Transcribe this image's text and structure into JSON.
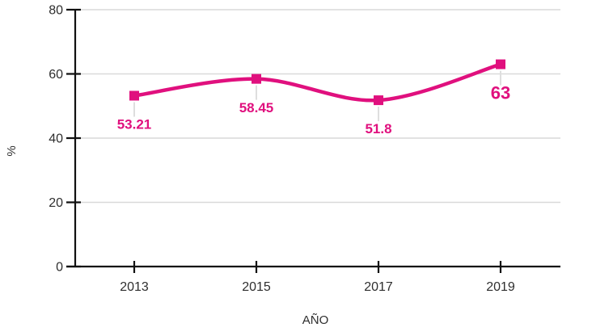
{
  "chart_data": {
    "type": "line",
    "categories": [
      "2013",
      "2015",
      "2017",
      "2019"
    ],
    "values": [
      53.21,
      58.45,
      51.8,
      63
    ],
    "point_labels": [
      "53.21",
      "58.45",
      "51.8",
      "63"
    ],
    "emphasized_point_index": 3,
    "title": "",
    "xlabel": "AÑO",
    "ylabel": "%",
    "ylim": [
      0,
      80
    ],
    "yticks": [
      0,
      20,
      40,
      60,
      80
    ],
    "ytick_labels": [
      "0",
      "20",
      "40",
      "60",
      "80"
    ],
    "grid": true,
    "legend": false,
    "line_style": "smooth",
    "marker": "square"
  },
  "colors": {
    "accent": "#e0107e",
    "axis": "#111111",
    "tick_text": "#2e2e2e",
    "gridline": "#d9d9d9",
    "leader": "#dedede",
    "background": "#ffffff"
  }
}
